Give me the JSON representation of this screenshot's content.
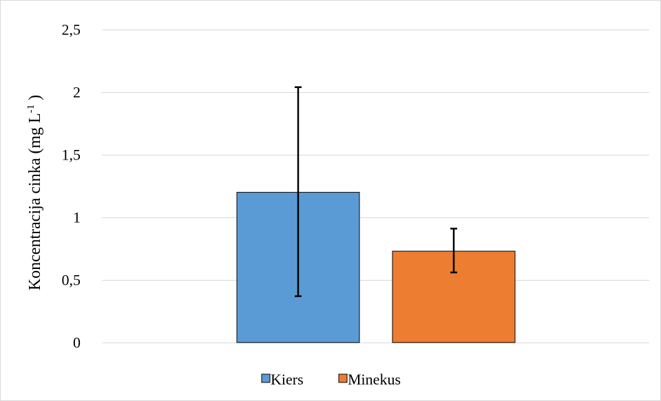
{
  "chart_data": {
    "type": "bar",
    "title": "",
    "xlabel": "",
    "ylabel": "Koncentracija cinka (mg L",
    "ylabel_sup": "-1",
    "ylabel_close": " )",
    "ylim": [
      0,
      2.5
    ],
    "yticks": [
      0,
      0.5,
      1,
      1.5,
      2,
      2.5
    ],
    "ytick_labels": [
      "0",
      "0,5",
      "1",
      "1,5",
      "2",
      "2,5"
    ],
    "grid": true,
    "legend_position": "bottom",
    "series": [
      {
        "name": "Kiers",
        "value": 1.2,
        "error_low": 0.37,
        "error_high": 2.04,
        "color": "#5b9bd5"
      },
      {
        "name": "Minekus",
        "value": 0.73,
        "error_low": 0.56,
        "error_high": 0.91,
        "color": "#ed7d31"
      }
    ]
  }
}
